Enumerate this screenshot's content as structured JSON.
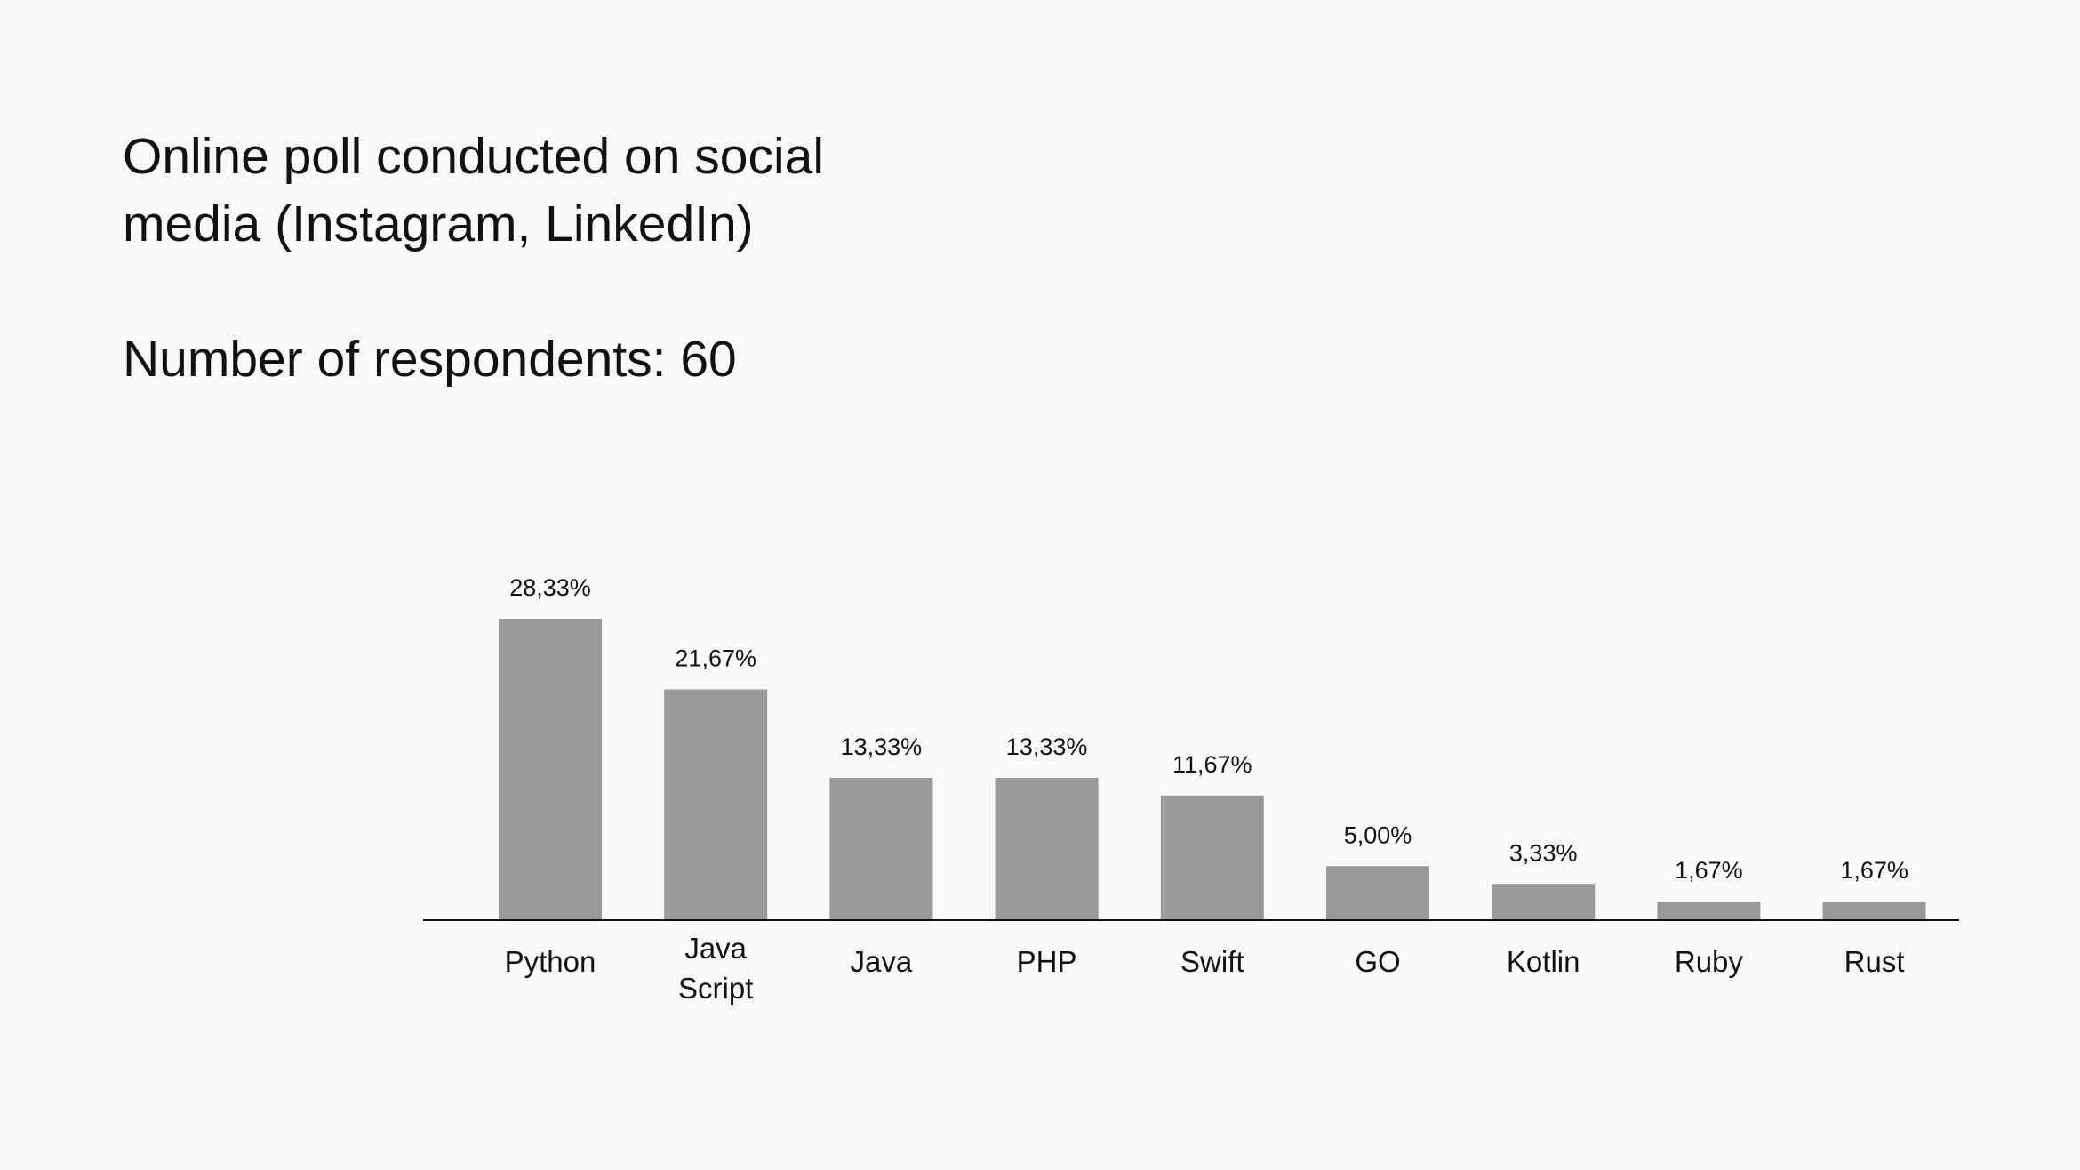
{
  "intro": {
    "title": "Online poll conducted on social\nmedia (Instagram, LinkedIn)",
    "respondents": "Number of respondents: 60"
  },
  "colors": {
    "background": "#f9f9f9",
    "bar": "#999999",
    "axis": "#111111",
    "text": "#111111"
  },
  "chart_data": {
    "type": "bar",
    "title": "",
    "xlabel": "",
    "ylabel": "",
    "categories": [
      [
        "Python"
      ],
      [
        "Java",
        "Script"
      ],
      [
        "Java"
      ],
      [
        "PHP"
      ],
      [
        "Swift"
      ],
      [
        "GO"
      ],
      [
        "Kotlin"
      ],
      [
        "Ruby"
      ],
      [
        "Rust"
      ]
    ],
    "values": [
      28.33,
      21.67,
      13.33,
      13.33,
      11.67,
      5.0,
      3.33,
      1.67,
      1.67
    ],
    "value_labels": [
      "28,33%",
      "21,67%",
      "13,33%",
      "13,33%",
      "11,67%",
      "5,00%",
      "3,33%",
      "1,67%",
      "1,67%"
    ],
    "ylim": [
      0,
      28.33
    ],
    "grid": false,
    "legend": "none"
  }
}
